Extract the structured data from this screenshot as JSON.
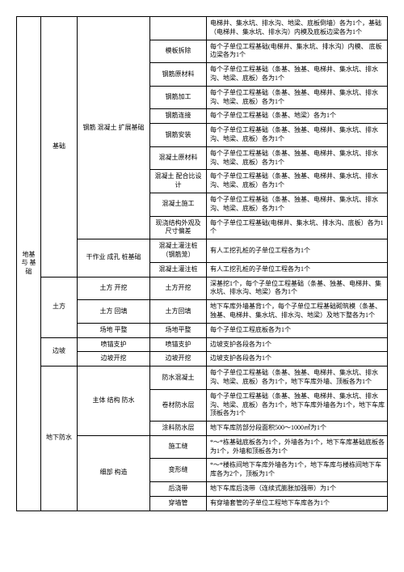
{
  "c1": {
    "label": "地基\n与\n基础"
  },
  "a1": {
    "label": "基础"
  },
  "a1b1": {
    "label": "钢筋\n混凝土\n扩展基础"
  },
  "r1": {
    "c5": "",
    "c6": "电梯井、集水坑、排水沟、地梁、底板倒墙）各为1个，基础（电梯井、集水坑、排水沟）内模及底板边梁各为1个"
  },
  "r2": {
    "c5": "模板拆除",
    "c6": "每个子单位工程基础(电梯井、集水坑、排水沟）内模、 底板边梁各为1个"
  },
  "r3": {
    "c5": "钢筋原材料",
    "c6": "每个子单位工程基础（条基、独基、电梯井、集水坑、排水沟、地梁、底板）各为1个"
  },
  "r4": {
    "c5": "钢筋加工",
    "c6": "每个子单位工程基础（条基、独基、电梯井、集水坑、排水沟、地梁、底板）各为1个"
  },
  "r5": {
    "c5": "钢筋连接",
    "c6": "每个子单位工程基础（条基、地梁）各为1个"
  },
  "r6": {
    "c5": "钢筋安装",
    "c6": "每个子单位工程基础（条基、独基、电梯井、集水坑、排水沟、地梁、底板）各为1个"
  },
  "r7": {
    "c5": "混凝土原材料",
    "c6": "每个子单位工程基础（条基、独基、电梯井、集水坑、排水沟、地梁、底板）各为1个"
  },
  "r8": {
    "c5": "混凝土\n配合比设计",
    "c6": "每个子单位工程基础（条基、独基、电梯井、集水坑、排水沟、地梁、底板）各为1个"
  },
  "r9": {
    "c5": "混凝土施工",
    "c6": "每个子单位工程基础（条基、独基、电梯井、集水坑、排水沟、地梁、底板）各为1个"
  },
  "r10": {
    "c5": "现浇结构外观及尺寸偏差",
    "c6": "每个子单位工程基础(电梯井、集水坑、排水沟、底板）各为1个"
  },
  "a1b2": {
    "label": "干作业\n成孔\n桩基础"
  },
  "r11": {
    "c5": "混凝土灌注桩（钢筋笼）",
    "c6": "有人工挖孔桩的子单位工程各为1个"
  },
  "r12": {
    "c5": "混凝土灌注桩",
    "c6": "有人工挖孔桩的子单位工程各为1个"
  },
  "a2": {
    "label": "土方"
  },
  "a2b1": {
    "label": "土方\n开挖"
  },
  "r13": {
    "c5": "土方开挖",
    "c6": "深基挖1个，每个子单位工程基础（条基、独基、电梯井、集水坑、排水沟、地梁）各为1个"
  },
  "a2b2": {
    "label": "土方\n回填"
  },
  "r14": {
    "c5": "土方回填",
    "c6": "地下车库外墙基背1个，每个子单位工程基础砌筑模（条基、独基、电梯井、集水坑、排水沟、地梁）及地下整各为1个"
  },
  "a2b3": {
    "label": "场地\n平整"
  },
  "r15": {
    "c5": "场地平整",
    "c6": "每个子单位工程底板各为1个"
  },
  "a3": {
    "label": "边坡"
  },
  "a3b1": {
    "label": "喷锚支护"
  },
  "r16": {
    "c5": "喷锚支护",
    "c6": "边坡支护各段各为1个"
  },
  "a3b2": {
    "label": "边坡开挖"
  },
  "r17": {
    "c5": "边坡开挖",
    "c6": "边坡支护各段各为1个"
  },
  "a4": {
    "label": "地下防水"
  },
  "a4b1": {
    "label": "主体\n结构\n防水"
  },
  "r18": {
    "c5": "防水混凝土",
    "c6": "每个子单位工程基础（条基、独基、电梯井、集水坑、排水沟、地梁、底板）各为1个，地下车库外墙、顶板各为1个"
  },
  "r19": {
    "c5": "卷材防水层",
    "c6": "每个子单位工程基础（条基、独基、电梯井、集水坑、排水沟、地梁、底板）各为1个，地下车库外墙各为1个，地下车库顶板各为1个"
  },
  "r20": {
    "c5": "涂料防水层",
    "c6": "地下车库防部分段面积500～1000㎡为1个"
  },
  "a4b2": {
    "label": "细部\n构造"
  },
  "r21": {
    "c5": "施工缝",
    "c6": "*～*栋基础底板各为1个，外墙各为1个，地下车库基础底板各为1个，外墙和顶板各为1个"
  },
  "r22": {
    "c5": "变形缝",
    "c6": "*～*楼栋间地下车库外墙各为1个，地下车库与楼栋间地下车库各为2个，顶板为1个"
  },
  "r23": {
    "c5": "后浇带",
    "c6": "地下车库后浇带（连续式膨胀加强带）为1个"
  },
  "r24": {
    "c5": "穿墙管",
    "c6": "有穿墙套管的子单位工程地下车库各为1个"
  }
}
